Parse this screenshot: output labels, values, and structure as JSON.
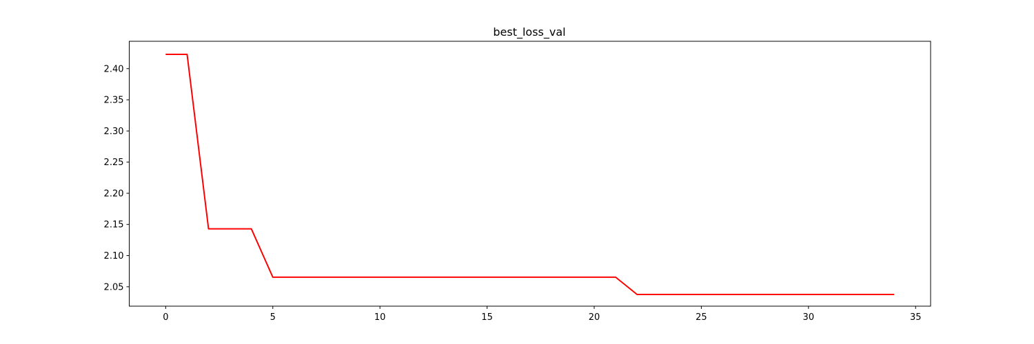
{
  "chart_data": {
    "type": "line",
    "title": "best_loss_val",
    "xlabel": "",
    "ylabel": "",
    "xlim": [
      -1.7,
      35.7
    ],
    "ylim": [
      2.0189,
      2.4439
    ],
    "xticks": [
      0,
      5,
      10,
      15,
      20,
      25,
      30,
      35
    ],
    "xtick_labels": [
      "0",
      "5",
      "10",
      "15",
      "20",
      "25",
      "30",
      "35"
    ],
    "yticks": [
      2.05,
      2.1,
      2.15,
      2.2,
      2.25,
      2.3,
      2.35,
      2.4
    ],
    "ytick_labels": [
      "2.05",
      "2.10",
      "2.15",
      "2.20",
      "2.25",
      "2.30",
      "2.35",
      "2.40"
    ],
    "grid": false,
    "series": [
      {
        "color": "#ff0000",
        "x": [
          0,
          1,
          2,
          3,
          4,
          5,
          6,
          7,
          8,
          9,
          10,
          11,
          12,
          13,
          14,
          15,
          16,
          17,
          18,
          19,
          20,
          21,
          22,
          23,
          24,
          25,
          26,
          27,
          28,
          29,
          30,
          31,
          32,
          33,
          34
        ],
        "values": [
          2.4229,
          2.4229,
          2.1429,
          2.1429,
          2.1429,
          2.0654,
          2.0654,
          2.0654,
          2.0654,
          2.0654,
          2.0654,
          2.0654,
          2.0654,
          2.0654,
          2.0654,
          2.0654,
          2.0654,
          2.0654,
          2.0654,
          2.0654,
          2.0654,
          2.0654,
          2.0377,
          2.0377,
          2.0377,
          2.0377,
          2.0377,
          2.0377,
          2.0377,
          2.0377,
          2.0377,
          2.0377,
          2.0377,
          2.0377,
          2.0377
        ]
      }
    ]
  }
}
